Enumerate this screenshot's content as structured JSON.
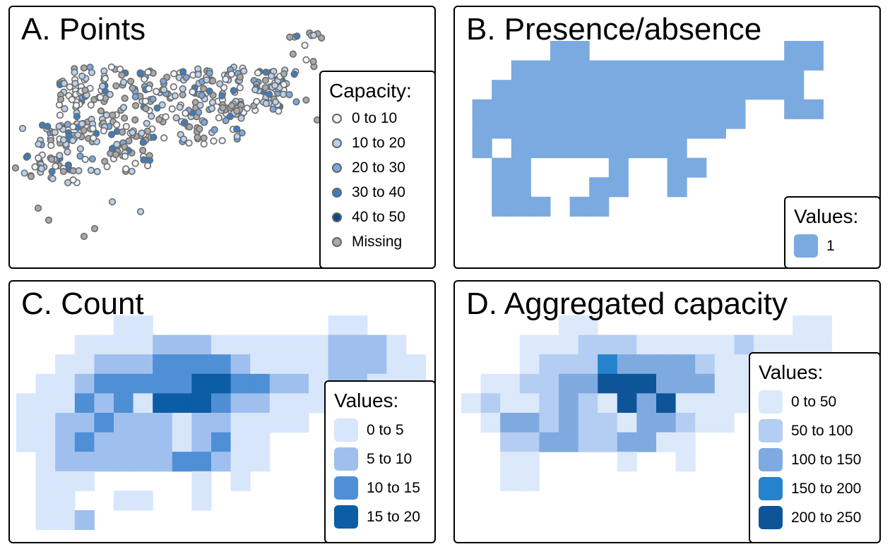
{
  "colors": {
    "c0": "#f0f5fb",
    "c1": "#b9d1ec",
    "c2": "#7aa9e0",
    "c3": "#3a7fc4",
    "c4": "#0f4a85",
    "missing": "#a9a9a9",
    "presence": "#7aaae0",
    "count": [
      "#d8e6fb",
      "#9fc0ee",
      "#4f8fd6",
      "#0b5da5"
    ],
    "agg": [
      "#dce9fb",
      "#b4cdf2",
      "#7faae0",
      "#2582cd",
      "#0d5598"
    ]
  },
  "panel_a": {
    "title": "A. Points",
    "legend_title": "Capacity:",
    "legend": [
      {
        "label": "0 to 10",
        "color": "#f0f5fb"
      },
      {
        "label": "10 to 20",
        "color": "#b9d1ec"
      },
      {
        "label": "20 to 30",
        "color": "#7aa9e0"
      },
      {
        "label": "30 to 40",
        "color": "#3a7fc4"
      },
      {
        "label": "40 to 50",
        "color": "#0f4a85"
      },
      {
        "label": "Missing",
        "color": "#a9a9a9"
      }
    ]
  },
  "panel_b": {
    "title": "B. Presence/absence",
    "legend_title": "Values:",
    "legend": [
      {
        "label": "1",
        "color": "#7aaae0"
      }
    ],
    "grid": [
      "00000110000000000110",
      "00000110000000000110",
      "00011111111111111110",
      "00011111111111111100",
      "00111111111111111100",
      "00111111111111111100",
      "01111111111111100110",
      "01111111111111100110",
      "01111111111111100000",
      "01111111111111000000",
      "01011111111100000000",
      "01011111111100000000",
      "00110000100110000000",
      "00110000100110000000",
      "00110001100100000000",
      "00110001100100000000",
      "00111011000000000000",
      "00111011000000000000"
    ]
  },
  "panel_c": {
    "title": "C. Count",
    "legend_title": "Values:",
    "legend": [
      {
        "label": "0 to 5",
        "color": "#d8e6fb"
      },
      {
        "label": "5 to 10",
        "color": "#9fc0ee"
      },
      {
        "label": "10 to 15",
        "color": "#4f8fd6"
      },
      {
        "label": "15 to 20",
        "color": "#0b5da5"
      }
    ],
    "grid": [
      "0000011000000000110000",
      "0000011000000000110000",
      "0001111222111111222100",
      "0001111222111111222100",
      "0011222333321111222110",
      "0011222333321111222110",
      "0112333334433221221110",
      "0112333334433221221110",
      "1113231444322111111310",
      "1113231444322111111310",
      "1122322212211110000000",
      "1122322212211110000000",
      "1123222212311000000000",
      "1123222212311000000000",
      "0122222233211000000000",
      "0122222233211000000000",
      "0111000001010000000000",
      "0111000001010000000000",
      "0110011001000000000000",
      "0110011001000000000000",
      "0112000000000000000000",
      "0112000000000000000000"
    ]
  },
  "panel_d": {
    "title": "D. Aggregated capacity",
    "legend_title": "Values:",
    "legend": [
      {
        "label": "0 to 50",
        "color": "#dce9fb"
      },
      {
        "label": "50 to 100",
        "color": "#b4cdf2"
      },
      {
        "label": "100 to 150",
        "color": "#7faae0"
      },
      {
        "label": "150 to 200",
        "color": "#2582cd"
      },
      {
        "label": "200 to 250",
        "color": "#0d5598"
      }
    ],
    "grid": [
      "00000110000000000110",
      "00000110000000000110",
      "00011122211111211110",
      "00011122211111211110",
      "00012224333321132110",
      "00012224333321132110",
      "01122335553331111210",
      "01122335553331111210",
      "12112321535111100000",
      "12112321535111100000",
      "01332322133211000000",
      "01332322133211000000",
      "00223322331100000000",
      "00223322331100000000",
      "00110000100100000000",
      "00110000100100000000",
      "00110000000000000000",
      "00110000000000000000"
    ]
  }
}
